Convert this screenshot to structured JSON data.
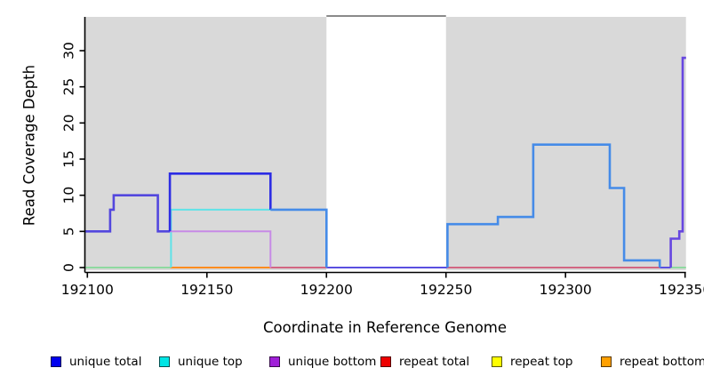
{
  "chart_data": {
    "type": "line",
    "xlabel": "Coordinate in Reference Genome",
    "ylabel": "Read Coverage Depth",
    "xlim": [
      192100,
      192350
    ],
    "ylim": [
      0,
      30
    ],
    "x_ticks": [
      192100,
      192150,
      192200,
      192250,
      192300,
      192350
    ],
    "x_tick_labels": [
      "192100",
      "192150",
      "192200",
      "192250",
      "192300",
      "192350"
    ],
    "y_ticks": [
      0,
      5,
      10,
      15,
      20,
      25,
      30
    ],
    "y_tick_labels": [
      "0",
      "5",
      "10",
      "15",
      "20",
      "25",
      "30"
    ],
    "grid": false,
    "legend_position": "bottom",
    "background": {
      "plot_bg_color": "#d9d9d9",
      "page_bg_color": "#ffffff",
      "no_coverage_gap": {
        "x0": 192200,
        "x1": 192250,
        "color": "#ffffff",
        "top_line_color": "#8a8a8a"
      }
    },
    "legend": [
      {
        "label": "unique total",
        "color": "#0000ee"
      },
      {
        "label": "unique top",
        "color": "#00e5e5"
      },
      {
        "label": "unique bottom",
        "color": "#a020d8"
      },
      {
        "label": "repeat total",
        "color": "#ee0000"
      },
      {
        "label": "repeat top",
        "color": "#ffff00"
      },
      {
        "label": "repeat bottom",
        "color": "#ffa000"
      }
    ],
    "series": [
      {
        "name": "baseline-green-left",
        "color": "#8fd9a0",
        "width": 2,
        "points": [
          [
            192099,
            0
          ],
          [
            192134.7,
            0
          ]
        ]
      },
      {
        "name": "baseline-orange",
        "color": "#ff8c1e",
        "width": 2,
        "points": [
          [
            192134.7,
            0
          ],
          [
            192176.6,
            0
          ]
        ]
      },
      {
        "name": "baseline-pink-left",
        "color": "#d05575",
        "width": 1.8,
        "points": [
          [
            192176.6,
            0
          ],
          [
            192200,
            0
          ]
        ]
      },
      {
        "name": "baseline-slate-gap",
        "color": "#5a4fe0",
        "width": 2,
        "points": [
          [
            192200,
            0
          ],
          [
            192250.6,
            0
          ]
        ]
      },
      {
        "name": "baseline-crimson-right",
        "color": "#d05575",
        "width": 1.8,
        "points": [
          [
            192250.6,
            0
          ],
          [
            192339.4,
            0
          ]
        ]
      },
      {
        "name": "baseline-slate-right",
        "color": "#5a4fe0",
        "width": 2,
        "points": [
          [
            192339.4,
            0
          ],
          [
            192344,
            0
          ]
        ]
      },
      {
        "name": "baseline-green-right",
        "color": "#8fd9a0",
        "width": 2,
        "points": [
          [
            192344,
            0
          ],
          [
            192350.4,
            0
          ]
        ]
      },
      {
        "name": "unique-top-cyan",
        "color": "#5fe3e8",
        "width": 2,
        "points": [
          [
            192135,
            0
          ],
          [
            192135,
            8
          ],
          [
            192176.6,
            8
          ]
        ]
      },
      {
        "name": "unique-bottom-violet",
        "color": "#c78ae6",
        "width": 2,
        "points": [
          [
            192134.5,
            5
          ],
          [
            192176.6,
            5
          ],
          [
            192176.6,
            0
          ]
        ]
      },
      {
        "name": "unique-left-slate",
        "color": "#5347de",
        "width": 2.6,
        "points": [
          [
            192099,
            5
          ],
          [
            192109.5,
            5
          ],
          [
            192109.5,
            8
          ],
          [
            192111,
            8
          ],
          [
            192111,
            10
          ],
          [
            192129.5,
            10
          ],
          [
            192129.5,
            5
          ],
          [
            192134.5,
            5
          ]
        ]
      },
      {
        "name": "unique-total-dark",
        "color": "#2d2de4",
        "width": 2.6,
        "points": [
          [
            192134.5,
            5
          ],
          [
            192134.5,
            13
          ],
          [
            192176.6,
            13
          ],
          [
            192176.6,
            8
          ]
        ]
      },
      {
        "name": "unique-total-dodger-left",
        "color": "#458be8",
        "width": 2.6,
        "points": [
          [
            192176.6,
            8
          ],
          [
            192200,
            8
          ],
          [
            192200,
            0
          ]
        ]
      },
      {
        "name": "unique-total-dodger-right",
        "color": "#458be8",
        "width": 2.6,
        "points": [
          [
            192250.6,
            0
          ],
          [
            192250.6,
            6
          ],
          [
            192271.7,
            6
          ],
          [
            192271.7,
            7
          ],
          [
            192286.5,
            7
          ],
          [
            192286.5,
            17
          ],
          [
            192318.5,
            17
          ],
          [
            192318.5,
            11
          ],
          [
            192324.5,
            11
          ],
          [
            192324.5,
            1
          ],
          [
            192339.4,
            1
          ],
          [
            192339.4,
            0
          ]
        ]
      },
      {
        "name": "unique-purple-spike",
        "color": "#6747e0",
        "width": 2.6,
        "points": [
          [
            192344,
            0
          ],
          [
            192344,
            4
          ],
          [
            192347.6,
            4
          ],
          [
            192347.6,
            5
          ],
          [
            192349,
            5
          ],
          [
            192349,
            29
          ],
          [
            192350.4,
            29
          ]
        ]
      }
    ]
  }
}
